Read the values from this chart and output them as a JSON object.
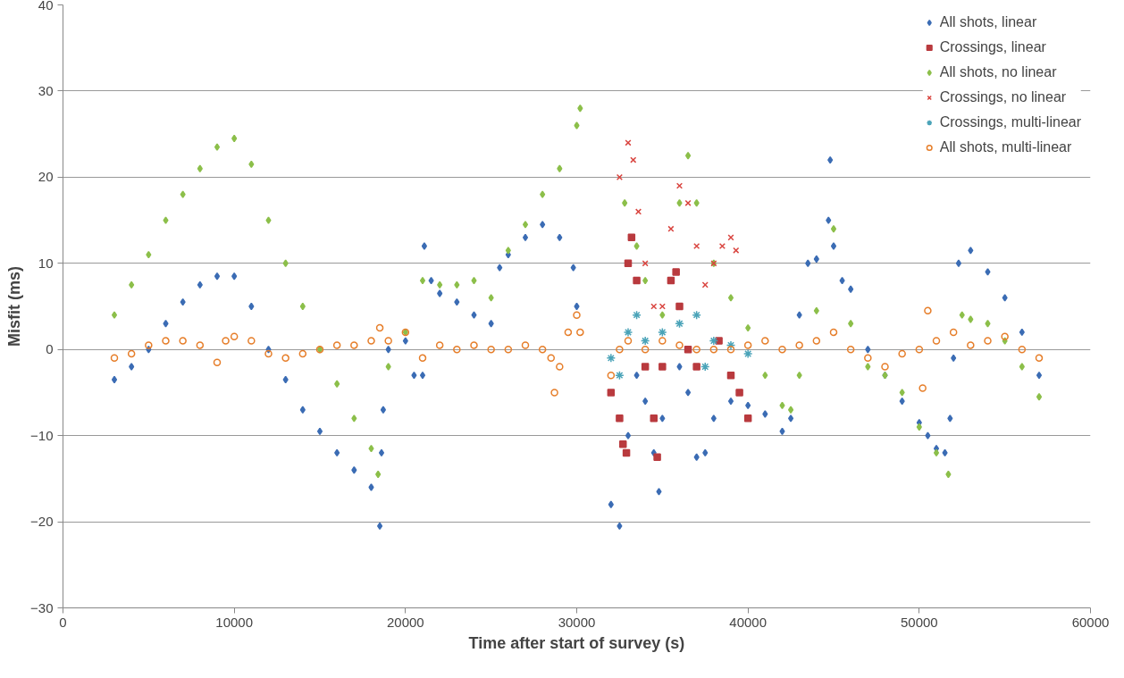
{
  "chart_data": {
    "type": "scatter",
    "xlabel": "Time after start of survey (s)",
    "ylabel": "Misfit (ms)",
    "xlim": [
      0,
      60000
    ],
    "xticks": [
      0,
      10000,
      20000,
      30000,
      40000,
      50000,
      60000
    ],
    "ylim": [
      -30,
      40
    ],
    "yticks": [
      -30,
      -20,
      -10,
      0,
      10,
      20,
      30,
      40
    ],
    "grid": "y",
    "legend": "top right",
    "series": [
      {
        "name": "All shots, linear",
        "color": "#3b6cb4",
        "marker": "diamond",
        "x": [
          3000,
          4000,
          5000,
          6000,
          7000,
          8000,
          9000,
          10000,
          11000,
          12000,
          13000,
          14000,
          15000,
          16000,
          17000,
          18000,
          18500,
          18600,
          18700,
          19000,
          20000,
          20500,
          21000,
          21100,
          21500,
          22000,
          23000,
          24000,
          25000,
          25500,
          26000,
          27000,
          28000,
          29000,
          29800,
          30000,
          32000,
          32500,
          33000,
          33500,
          34000,
          34500,
          34800,
          35000,
          36000,
          36500,
          37000,
          37500,
          38000,
          39000,
          40000,
          41000,
          42000,
          42500,
          43000,
          43500,
          44000,
          44700,
          44800,
          45000,
          45500,
          46000,
          47000,
          48000,
          49000,
          50000,
          50500,
          51000,
          51500,
          51800,
          52000,
          52300,
          53000,
          54000,
          55000,
          56000,
          57000
        ],
        "values": [
          -3.5,
          -2,
          0,
          3,
          5.5,
          7.5,
          8.5,
          8.5,
          5,
          0,
          -3.5,
          -7,
          -9.5,
          -12,
          -14,
          -16,
          -20.5,
          -12,
          -7,
          0,
          1,
          -3,
          -3,
          12,
          8,
          6.5,
          5.5,
          4,
          3,
          9.5,
          11,
          13,
          14.5,
          13,
          9.5,
          5,
          -18,
          -20.5,
          -10,
          -3,
          -6,
          -12,
          -16.5,
          -8,
          -2,
          -5,
          -12.5,
          -12,
          -8,
          -6,
          -6.5,
          -7.5,
          -9.5,
          -8,
          4,
          10,
          10.5,
          15,
          22,
          12,
          8,
          7,
          0,
          -3,
          -6,
          -8.5,
          -10,
          -11.5,
          -12,
          -8,
          -1,
          10,
          11.5,
          9,
          6,
          2,
          -3
        ]
      },
      {
        "name": "Crossings, linear",
        "color": "#b93a3e",
        "marker": "square",
        "x": [
          32000,
          32500,
          32700,
          32900,
          33000,
          33200,
          33500,
          34000,
          34500,
          34700,
          35000,
          35500,
          35800,
          36000,
          36500,
          37000,
          38300,
          39000,
          39500,
          40000
        ],
        "values": [
          -5,
          -8,
          -11,
          -12,
          10,
          13,
          8,
          -2,
          -8,
          -12.5,
          -2,
          8,
          9,
          5,
          0,
          -2,
          1,
          -3,
          -5,
          -8
        ]
      },
      {
        "name": "All shots, no linear",
        "color": "#8cbf4a",
        "marker": "diamond",
        "x": [
          3000,
          4000,
          5000,
          6000,
          7000,
          8000,
          9000,
          10000,
          11000,
          12000,
          13000,
          14000,
          15000,
          16000,
          17000,
          18000,
          18400,
          19000,
          20000,
          21000,
          22000,
          23000,
          24000,
          25000,
          26000,
          27000,
          28000,
          29000,
          30000,
          30200,
          32800,
          33500,
          34000,
          35000,
          36000,
          36500,
          37000,
          38000,
          39000,
          40000,
          41000,
          42000,
          42500,
          43000,
          44000,
          45000,
          46000,
          47000,
          48000,
          49000,
          50000,
          51000,
          51700,
          52500,
          53000,
          54000,
          55000,
          56000,
          57000
        ],
        "values": [
          4,
          7.5,
          11,
          15,
          18,
          21,
          23.5,
          24.5,
          21.5,
          15,
          10,
          5,
          0,
          -4,
          -8,
          -11.5,
          -14.5,
          -2,
          2,
          8,
          7.5,
          7.5,
          8,
          6,
          11.5,
          14.5,
          18,
          21,
          26,
          28,
          17,
          12,
          8,
          4,
          17,
          22.5,
          17,
          10,
          6,
          2.5,
          -3,
          -6.5,
          -7,
          -3,
          4.5,
          14,
          3,
          -2,
          -3,
          -5,
          -9,
          -12,
          -14.5,
          4,
          3.5,
          3,
          1,
          -2,
          -5.5
        ]
      },
      {
        "name": "Crossings, no linear",
        "color": "#d9443f",
        "marker": "cross",
        "x": [
          32500,
          33000,
          33300,
          33600,
          34000,
          34500,
          35000,
          35500,
          36000,
          36500,
          37000,
          37500,
          38000,
          38500,
          39000,
          39300
        ],
        "values": [
          20,
          24,
          22,
          16,
          10,
          5,
          5,
          14,
          19,
          17,
          12,
          7.5,
          10,
          12,
          13,
          11.5
        ]
      },
      {
        "name": "Crossings, multi-linear",
        "color": "#4aa3b8",
        "marker": "cross",
        "x": [
          32000,
          32500,
          33000,
          33500,
          34000,
          35000,
          36000,
          37000,
          37500,
          38000,
          39000,
          40000
        ],
        "values": [
          -1,
          -3,
          2,
          4,
          1,
          2,
          3,
          4,
          -2,
          1,
          0.5,
          -0.5
        ]
      },
      {
        "name": "All shots, multi-linear",
        "color": "#e67e2a",
        "marker": "circle",
        "x": [
          3000,
          4000,
          5000,
          6000,
          7000,
          8000,
          9000,
          9500,
          10000,
          11000,
          12000,
          13000,
          14000,
          15000,
          16000,
          17000,
          18000,
          18500,
          19000,
          20000,
          21000,
          22000,
          23000,
          24000,
          25000,
          26000,
          27000,
          28000,
          28500,
          28700,
          29000,
          29500,
          30000,
          30200,
          32000,
          32500,
          33000,
          34000,
          35000,
          36000,
          37000,
          38000,
          39000,
          40000,
          41000,
          42000,
          43000,
          44000,
          45000,
          46000,
          47000,
          48000,
          49000,
          50000,
          50200,
          50500,
          51000,
          52000,
          53000,
          54000,
          55000,
          56000,
          57000
        ],
        "values": [
          -1,
          -0.5,
          0.5,
          1,
          1,
          0.5,
          -1.5,
          1,
          1.5,
          1,
          -0.5,
          -1,
          -0.5,
          0,
          0.5,
          0.5,
          1,
          2.5,
          1,
          2,
          -1,
          0.5,
          0,
          0.5,
          0,
          0,
          0.5,
          0,
          -1,
          -5,
          -2,
          2,
          4,
          2,
          -3,
          0,
          1,
          0,
          1,
          0.5,
          0,
          0,
          0,
          0.5,
          1,
          0,
          0.5,
          1,
          2,
          0,
          -1,
          -2,
          -0.5,
          0,
          -4.5,
          4.5,
          1,
          2,
          0.5,
          1,
          1.5,
          0,
          -1
        ]
      }
    ]
  }
}
